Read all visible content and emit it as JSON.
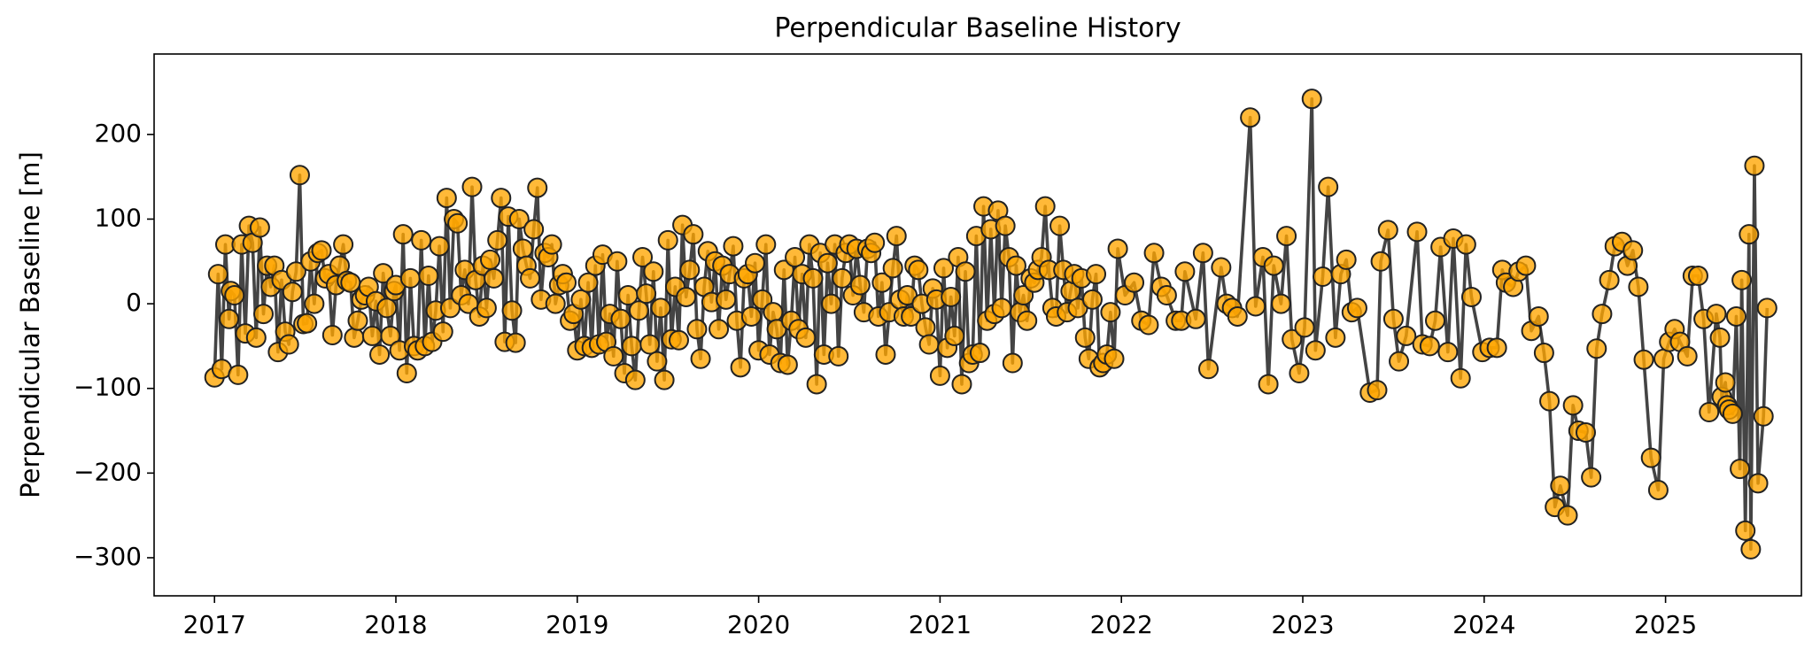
{
  "chart_data": {
    "type": "line",
    "title": "Perpendicular Baseline History",
    "y_label": "Perpendicular Baseline [m]",
    "marker_color": "#ffa500",
    "line_color": "#444444",
    "xlim": [
      2016.667,
      2025.749
    ],
    "xticks": [
      2017,
      2018,
      2019,
      2020,
      2021,
      2022,
      2023,
      2024,
      2025
    ],
    "ylim": [
      -345,
      295
    ],
    "yticks": [
      {
        "value": -300,
        "label": "−300"
      },
      {
        "value": -200,
        "label": "−200"
      },
      {
        "value": -100,
        "label": "−100"
      },
      0,
      100,
      200
    ],
    "grid": false,
    "x": [
      2017.0,
      2017.02,
      2017.04,
      2017.06,
      2017.08,
      2017.09,
      2017.11,
      2017.13,
      2017.15,
      2017.17,
      2017.19,
      2017.21,
      2017.23,
      2017.25,
      2017.27,
      2017.29,
      2017.31,
      2017.33,
      2017.35,
      2017.37,
      2017.39,
      2017.41,
      2017.43,
      2017.45,
      2017.47,
      2017.49,
      2017.51,
      2017.53,
      2017.55,
      2017.57,
      2017.59,
      2017.61,
      2017.63,
      2017.65,
      2017.67,
      2017.69,
      2017.71,
      2017.73,
      2017.75,
      2017.77,
      2017.79,
      2017.81,
      2017.83,
      2017.85,
      2017.87,
      2017.89,
      2017.91,
      2017.93,
      2017.95,
      2017.97,
      2017.99,
      2018.0,
      2018.02,
      2018.04,
      2018.06,
      2018.08,
      2018.1,
      2018.12,
      2018.14,
      2018.16,
      2018.18,
      2018.2,
      2018.22,
      2018.24,
      2018.26,
      2018.28,
      2018.3,
      2018.32,
      2018.34,
      2018.36,
      2018.38,
      2018.4,
      2018.42,
      2018.44,
      2018.46,
      2018.48,
      2018.5,
      2018.52,
      2018.54,
      2018.56,
      2018.58,
      2018.6,
      2018.62,
      2018.64,
      2018.66,
      2018.68,
      2018.7,
      2018.72,
      2018.74,
      2018.76,
      2018.78,
      2018.8,
      2018.82,
      2018.84,
      2018.86,
      2018.88,
      2018.9,
      2018.92,
      2018.94,
      2018.96,
      2018.98,
      2019.0,
      2019.02,
      2019.04,
      2019.06,
      2019.08,
      2019.1,
      2019.12,
      2019.14,
      2019.16,
      2019.18,
      2019.2,
      2019.22,
      2019.24,
      2019.26,
      2019.28,
      2019.3,
      2019.32,
      2019.34,
      2019.36,
      2019.38,
      2019.4,
      2019.42,
      2019.44,
      2019.46,
      2019.48,
      2019.5,
      2019.52,
      2019.54,
      2019.56,
      2019.58,
      2019.6,
      2019.62,
      2019.64,
      2019.66,
      2019.68,
      2019.7,
      2019.72,
      2019.74,
      2019.76,
      2019.78,
      2019.8,
      2019.82,
      2019.84,
      2019.86,
      2019.88,
      2019.9,
      2019.92,
      2019.94,
      2019.96,
      2019.98,
      2020.0,
      2020.02,
      2020.04,
      2020.06,
      2020.08,
      2020.1,
      2020.12,
      2020.14,
      2020.16,
      2020.18,
      2020.2,
      2020.22,
      2020.24,
      2020.26,
      2020.28,
      2020.3,
      2020.32,
      2020.34,
      2020.36,
      2020.38,
      2020.4,
      2020.42,
      2020.44,
      2020.46,
      2020.48,
      2020.5,
      2020.52,
      2020.54,
      2020.56,
      2020.58,
      2020.6,
      2020.62,
      2020.64,
      2020.66,
      2020.68,
      2020.7,
      2020.72,
      2020.74,
      2020.76,
      2020.78,
      2020.8,
      2020.82,
      2020.84,
      2020.86,
      2020.88,
      2020.9,
      2020.92,
      2020.94,
      2020.96,
      2020.98,
      2021.0,
      2021.02,
      2021.04,
      2021.06,
      2021.08,
      2021.1,
      2021.12,
      2021.14,
      2021.16,
      2021.18,
      2021.2,
      2021.22,
      2021.24,
      2021.26,
      2021.28,
      2021.3,
      2021.32,
      2021.34,
      2021.36,
      2021.38,
      2021.4,
      2021.42,
      2021.44,
      2021.46,
      2021.48,
      2021.5,
      2021.52,
      2021.54,
      2021.56,
      2021.58,
      2021.6,
      2021.62,
      2021.64,
      2021.66,
      2021.68,
      2021.7,
      2021.72,
      2021.74,
      2021.76,
      2021.78,
      2021.8,
      2021.82,
      2021.84,
      2021.86,
      2021.88,
      2021.9,
      2021.92,
      2021.94,
      2021.96,
      2021.98,
      2022.02,
      2022.07,
      2022.11,
      2022.15,
      2022.18,
      2022.22,
      2022.25,
      2022.3,
      2022.33,
      2022.35,
      2022.41,
      2022.45,
      2022.48,
      2022.55,
      2022.58,
      2022.61,
      2022.64,
      2022.71,
      2022.74,
      2022.78,
      2022.81,
      2022.84,
      2022.88,
      2022.91,
      2022.94,
      2022.98,
      2023.01,
      2023.05,
      2023.07,
      2023.11,
      2023.14,
      2023.18,
      2023.21,
      2023.24,
      2023.27,
      2023.3,
      2023.37,
      2023.41,
      2023.43,
      2023.47,
      2023.5,
      2023.53,
      2023.57,
      2023.63,
      2023.66,
      2023.7,
      2023.73,
      2023.76,
      2023.8,
      2023.83,
      2023.87,
      2023.9,
      2023.93,
      2023.99,
      2024.03,
      2024.07,
      2024.1,
      2024.12,
      2024.16,
      2024.19,
      2024.23,
      2024.26,
      2024.3,
      2024.33,
      2024.36,
      2024.39,
      2024.42,
      2024.46,
      2024.49,
      2024.52,
      2024.56,
      2024.59,
      2024.62,
      2024.65,
      2024.69,
      2024.72,
      2024.76,
      2024.79,
      2024.82,
      2024.85,
      2024.88,
      2024.92,
      2024.96,
      2024.99,
      2025.02,
      2025.05,
      2025.08,
      2025.12,
      2025.15,
      2025.18,
      2025.21,
      2025.24,
      2025.28,
      2025.3,
      2025.31,
      2025.33,
      2025.34,
      2025.35,
      2025.37,
      2025.39,
      2025.41,
      2025.42,
      2025.44,
      2025.46,
      2025.47,
      2025.49,
      2025.51,
      2025.54,
      2025.56
    ],
    "values": [
      -87,
      35,
      -77,
      70,
      -18,
      15,
      10,
      -84,
      70,
      -35,
      92,
      72,
      -40,
      90,
      -12,
      45,
      20,
      45,
      -57,
      28,
      -33,
      -48,
      14,
      38,
      152,
      -24,
      -23,
      50,
      0,
      60,
      63,
      30,
      35,
      -37,
      22,
      45,
      70,
      27,
      25,
      -40,
      -20,
      5,
      10,
      20,
      -38,
      3,
      -60,
      36,
      -5,
      -38,
      15,
      22,
      -55,
      82,
      -82,
      30,
      -50,
      -55,
      75,
      -50,
      33,
      -45,
      -8,
      68,
      -33,
      125,
      -5,
      100,
      95,
      10,
      40,
      0,
      138,
      28,
      -15,
      45,
      -5,
      52,
      30,
      75,
      125,
      -45,
      103,
      -8,
      -46,
      100,
      65,
      45,
      30,
      88,
      137,
      5,
      60,
      55,
      70,
      0,
      22,
      35,
      25,
      -20,
      -12,
      -55,
      5,
      -50,
      25,
      -52,
      45,
      -48,
      58,
      -45,
      -12,
      -62,
      50,
      -18,
      -82,
      10,
      -50,
      -90,
      -8,
      55,
      12,
      -48,
      38,
      -68,
      -5,
      -90,
      75,
      -42,
      20,
      -43,
      93,
      8,
      40,
      82,
      -30,
      -65,
      20,
      62,
      2,
      50,
      -30,
      45,
      5,
      35,
      68,
      -20,
      -75,
      30,
      35,
      -15,
      48,
      -55,
      5,
      70,
      -60,
      -10,
      -30,
      -70,
      40,
      -72,
      -20,
      55,
      -30,
      35,
      -40,
      70,
      30,
      -95,
      60,
      -60,
      48,
      0,
      70,
      -62,
      30,
      60,
      70,
      10,
      65,
      22,
      -10,
      65,
      60,
      72,
      -15,
      25,
      -60,
      -10,
      42,
      80,
      5,
      -15,
      10,
      -15,
      45,
      40,
      0,
      -28,
      -48,
      18,
      5,
      -85,
      42,
      -52,
      8,
      -38,
      55,
      -95,
      38,
      -70,
      -60,
      80,
      -58,
      115,
      -20,
      88,
      -12,
      110,
      -5,
      92,
      55,
      -70,
      45,
      -10,
      10,
      -20,
      30,
      25,
      40,
      55,
      115,
      40,
      -5,
      -15,
      92,
      40,
      -10,
      15,
      35,
      -5,
      30,
      -40,
      -65,
      5,
      35,
      -75,
      -70,
      -60,
      -10,
      -65,
      65,
      10,
      25,
      -20,
      -25,
      60,
      20,
      10,
      -20,
      -20,
      38,
      -18,
      60,
      -77,
      43,
      0,
      -5,
      -15,
      220,
      -3,
      55,
      -95,
      45,
      0,
      80,
      -42,
      -82,
      -28,
      242,
      -55,
      32,
      138,
      -40,
      35,
      52,
      -10,
      -5,
      -105,
      -102,
      50,
      87,
      -18,
      -68,
      -38,
      85,
      -48,
      -50,
      -20,
      67,
      -57,
      77,
      -88,
      70,
      8,
      -57,
      -52,
      -52,
      40,
      25,
      20,
      38,
      45,
      -32,
      -15,
      -58,
      -115,
      -240,
      -215,
      -250,
      -120,
      -150,
      -152,
      -205,
      -53,
      -12,
      28,
      68,
      73,
      45,
      63,
      20,
      -66,
      -182,
      -220,
      -65,
      -45,
      -30,
      -45,
      -62,
      33,
      33,
      -18,
      -128,
      -12,
      -40,
      -110,
      -93,
      -120,
      -125,
      -130,
      -15,
      -195,
      28,
      -268,
      82,
      -290,
      163,
      -212,
      -133,
      -5
    ]
  }
}
